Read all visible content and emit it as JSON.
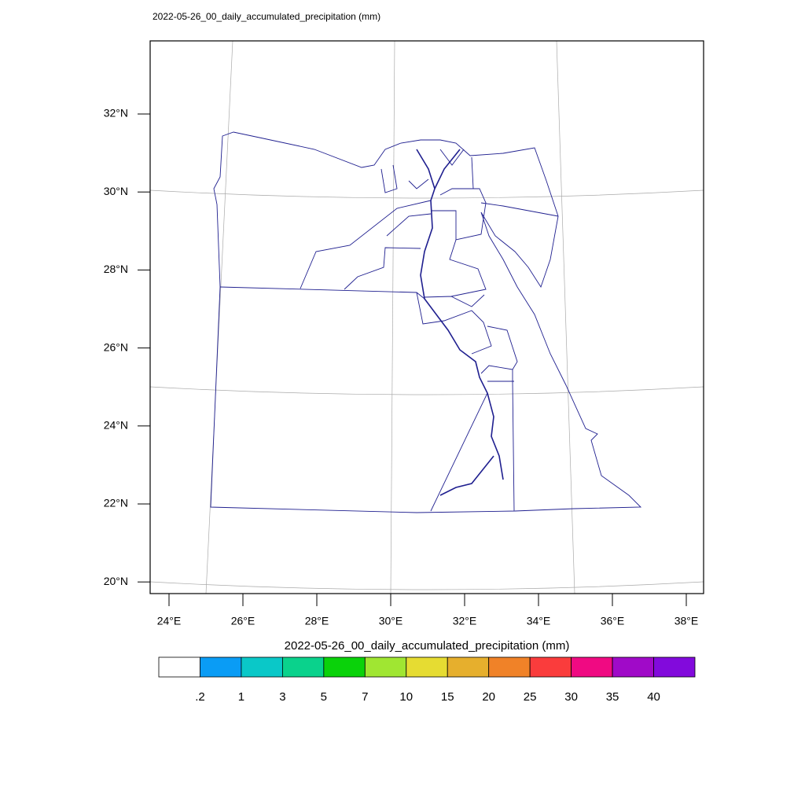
{
  "map": {
    "title": "2022-05-26_00_daily_accumulated_precipitation   (mm)",
    "lat_labels": [
      "32°N",
      "30°N",
      "28°N",
      "26°N",
      "24°N",
      "22°N",
      "20°N"
    ],
    "lon_labels": [
      "24°E",
      "26°E",
      "28°E",
      "30°E",
      "32°E",
      "34°E",
      "36°E",
      "38°E"
    ],
    "colorbar": {
      "title": "2022-05-26_00_daily_accumulated_precipitation  (mm)",
      "colors": [
        "#ffffff",
        "#0a9cf5",
        "#0ac8c8",
        "#0ad28c",
        "#0ad20a",
        "#a0e632",
        "#e6dc32",
        "#e6af2d",
        "#f08228",
        "#fa3c3c",
        "#f00a82",
        "#a00ac8",
        "#820adc"
      ],
      "labels": [
        ".2",
        "1",
        "3",
        "5",
        "7",
        "10",
        "15",
        "20",
        "25",
        "30",
        "35",
        "40"
      ]
    }
  }
}
